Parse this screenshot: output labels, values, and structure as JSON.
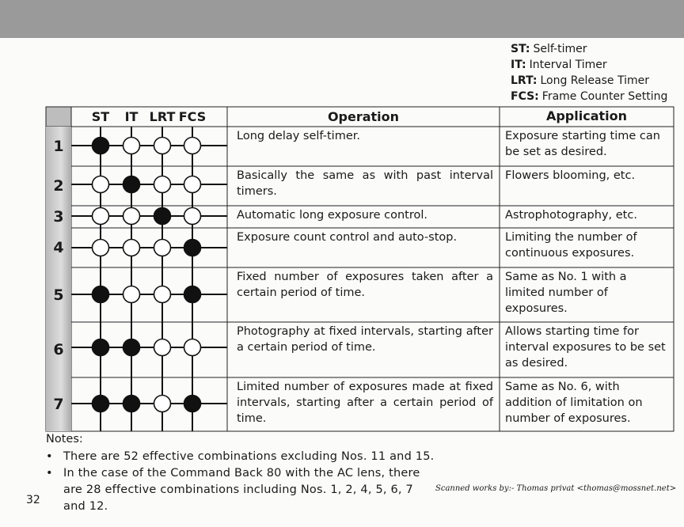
{
  "legend": [
    {
      "abbr": "ST:",
      "text": "Self-timer"
    },
    {
      "abbr": "IT:",
      "text": "Interval Timer"
    },
    {
      "abbr": "LRT:",
      "text": "Long Release Timer"
    },
    {
      "abbr": "FCS:",
      "text": "Frame Counter Setting"
    }
  ],
  "table": {
    "headers": {
      "modes": [
        "ST",
        "IT",
        "LRT",
        "FCS"
      ],
      "operation": "Operation",
      "application": "Application"
    },
    "rows": [
      {
        "number": "1",
        "modes": [
          true,
          false,
          false,
          false
        ],
        "operation": "Long delay self-timer.",
        "application": "Exposure starting time can be set as desired."
      },
      {
        "number": "2",
        "modes": [
          false,
          true,
          false,
          false
        ],
        "operation": "Basically the same as with past interval timers.",
        "application": "Flowers blooming, etc."
      },
      {
        "number": "3",
        "modes": [
          false,
          false,
          true,
          false
        ],
        "operation": "Automatic long exposure control.",
        "application": "Astrophotography, etc."
      },
      {
        "number": "4",
        "modes": [
          false,
          false,
          false,
          true
        ],
        "operation": "Exposure count control and auto-stop.",
        "application": "Limiting the number of continuous exposures."
      },
      {
        "number": "5",
        "modes": [
          true,
          false,
          false,
          true
        ],
        "operation": "Fixed number of exposures taken after a certain period of time.",
        "application": "Same as No. 1 with a limited number of exposures."
      },
      {
        "number": "6",
        "modes": [
          true,
          true,
          false,
          false
        ],
        "operation": "Photography at fixed intervals, starting after a certain period of time.",
        "application": "Allows starting time for interval exposures to be set as desired."
      },
      {
        "number": "7",
        "modes": [
          true,
          true,
          false,
          true
        ],
        "operation": "Limited number of exposures made at fixed intervals, starting after a certain period of time.",
        "application": "Same as No. 6, with addition of limitation on number of exposures."
      }
    ]
  },
  "notes": {
    "title": "Notes:",
    "items": [
      "There are 52 effective combinations excluding Nos. 11 and 15.",
      "In the case of the Command Back 80 with the AC lens, there are 28 effective combinations including Nos. 1, 2, 4, 5, 6, 7 and 12."
    ]
  },
  "page_number": "32",
  "credit": "Scanned works by:- Thomas privat <thomas@mossnet.net>"
}
